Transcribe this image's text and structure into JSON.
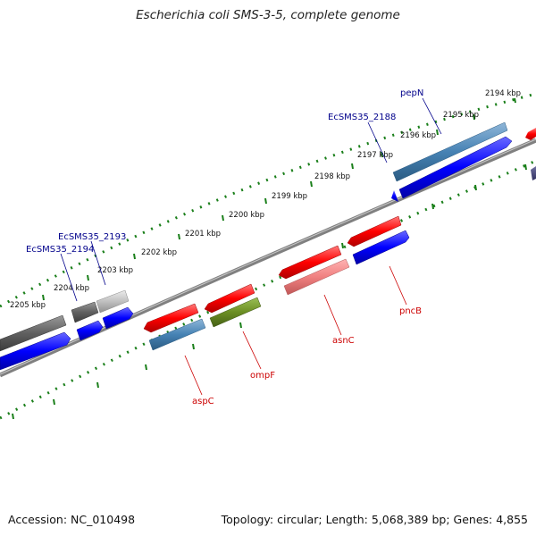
{
  "title": "Escherichia coli SMS-3-5, complete genome",
  "footer": {
    "accession": "Accession: NC_010498",
    "summary": "Topology: circular; Length: 5,068,389 bp; Genes: 4,855"
  },
  "kbp_ticks": [
    "2194 kbp",
    "2195 kbp",
    "2196 kbp",
    "2197 kbp",
    "2198 kbp",
    "2199 kbp",
    "2200 kbp",
    "2201 kbp",
    "2202 kbp",
    "2203 kbp",
    "2204 kbp",
    "2205 kbp"
  ],
  "gene_labels": {
    "pepN": "pepN",
    "ecsms35_2188": "EcSMS35_2188",
    "ecsms35_2193": "EcSMS35_2193",
    "ecsms35_2194": "EcSMS35_2194",
    "pncB": "pncB",
    "asnC": "asnC",
    "ompF": "ompF",
    "aspC": "aspC"
  },
  "colors": {
    "forward_gene": "#0000ff",
    "reverse_gene": "#ff0000",
    "steel_blue_gene": "#4682b4",
    "pink_gene": "#f08080",
    "olive_gene": "#6b8e23",
    "gray_gene": "#606060",
    "light_gray_gene": "#c0c0c0",
    "backbone": "#808080",
    "tick_green": "#1a7f1a",
    "label_blue": "#00008b",
    "label_red": "#cc0000"
  }
}
